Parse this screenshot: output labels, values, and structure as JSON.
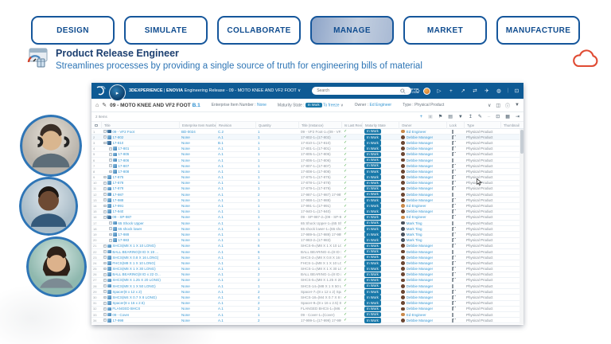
{
  "nav": {
    "tabs": [
      {
        "label": "DESIGN",
        "active": false
      },
      {
        "label": "SIMULATE",
        "active": false
      },
      {
        "label": "COLLABORATE",
        "active": false
      },
      {
        "label": "MANAGE",
        "active": true
      },
      {
        "label": "MARKET",
        "active": false
      },
      {
        "label": "MANUFACTURE",
        "active": false
      }
    ]
  },
  "hero": {
    "title": "Product Release Engineer",
    "subtitle": "Streamlines processes by providing a single source of truth for engineering bills of material"
  },
  "app": {
    "topbar": {
      "brand": "3DEXPERIENCE",
      "divider": "|",
      "product": "ENOVIA",
      "app_title": "Engineering Release - 09 - MOTO KNEE AND VF2 FOOT",
      "chevron": "∨",
      "search_placeholder": "Search",
      "user_name": "Ed Engineer",
      "user_org": "BioDept 2025"
    },
    "context": {
      "title": "09 - MOTO KNEE AND VF2 FOOT",
      "revision": "B.1",
      "ein_label": "Enterprise Item Number :",
      "ein_value": "None",
      "maturity_label": "Maturity State :",
      "maturity_value": "In Work",
      "maturity_next": "To freeze",
      "chevron": "∨",
      "owner_label": "Owner :",
      "owner_value": "Ed Engineer",
      "type_label": "Type :",
      "type_value": "Physical Product"
    },
    "toolbar": {
      "items_count": "2 Items"
    },
    "table": {
      "columns": [
        "Title",
        "Enterprise Item Number",
        "Revision",
        "Quantity",
        "Title (Instance)",
        "Is Last Revision",
        "Maturity State",
        "Owner",
        "Lock",
        "Type",
        "Thumbnail"
      ],
      "maturity_badge": "In Work",
      "type_value": "Physical Product",
      "rows": [
        {
          "n": 1,
          "indent": false,
          "kind": "assembly",
          "title": "09 - VF2 Foot",
          "ein": "BD-0024",
          "rev": "C.2",
          "qty": "1",
          "inst": "09 - VF2 Foot-1=(09 - VF2 ...",
          "owner": "Ed Engineer"
        },
        {
          "n": 2,
          "indent": false,
          "kind": "part",
          "title": "17-802",
          "ein": "None",
          "rev": "A.1",
          "qty": "1",
          "inst": "17-802-1=(17-802)",
          "owner": "Debbie Manager"
        },
        {
          "n": 3,
          "indent": false,
          "kind": "assembly",
          "title": "17-810",
          "ein": "None",
          "rev": "B.1",
          "qty": "1",
          "inst": "17-810-1=(17-810)",
          "owner": "Debbie Manager"
        },
        {
          "n": 4,
          "indent": true,
          "kind": "part",
          "title": "17-801",
          "ein": "None",
          "rev": "A.1",
          "qty": "1",
          "inst": "17-801-1=(17-801)",
          "owner": "Debbie Manager"
        },
        {
          "n": 5,
          "indent": true,
          "kind": "part",
          "title": "17-805",
          "ein": "None",
          "rev": "A.1",
          "qty": "1",
          "inst": "17-805-1=(17-805)",
          "owner": "Debbie Manager"
        },
        {
          "n": 6,
          "indent": true,
          "kind": "part",
          "title": "17-806",
          "ein": "None",
          "rev": "A.1",
          "qty": "1",
          "inst": "17-806-1=(17-806)",
          "owner": "Debbie Manager"
        },
        {
          "n": 7,
          "indent": true,
          "kind": "part",
          "title": "17-807",
          "ein": "None",
          "rev": "A.1",
          "qty": "1",
          "inst": "17-807-1=(17-807)",
          "owner": "Debbie Manager"
        },
        {
          "n": 8,
          "indent": true,
          "kind": "part",
          "title": "17-808",
          "ein": "None",
          "rev": "A.1",
          "qty": "1",
          "inst": "17-808-1=(17-808)",
          "owner": "Debbie Manager"
        },
        {
          "n": 9,
          "indent": false,
          "kind": "part",
          "title": "17-875",
          "ein": "None",
          "rev": "A.1",
          "qty": "1",
          "inst": "17-875-1=(17-875)",
          "owner": "Debbie Manager"
        },
        {
          "n": 10,
          "indent": false,
          "kind": "part",
          "title": "17-878",
          "ein": "None",
          "rev": "A.1",
          "qty": "1",
          "inst": "17-878-1=(17-878)",
          "owner": "Debbie Manager"
        },
        {
          "n": 11,
          "indent": false,
          "kind": "part",
          "title": "17-879",
          "ein": "None",
          "rev": "A.1",
          "qty": "1",
          "inst": "17-879-1=(17-879)",
          "owner": "Debbie Manager"
        },
        {
          "n": 12,
          "indent": false,
          "kind": "part",
          "title": "17-987",
          "ein": "None",
          "rev": "A.1",
          "qty": "2",
          "inst": "17-987-1=(17-987) 17-987...",
          "owner": "Debbie Manager"
        },
        {
          "n": 13,
          "indent": false,
          "kind": "part",
          "title": "17-988",
          "ein": "None",
          "rev": "A.1",
          "qty": "1",
          "inst": "17-988-1=(17-988)",
          "owner": "Debbie Manager"
        },
        {
          "n": 14,
          "indent": false,
          "kind": "part",
          "title": "17-991",
          "ein": "None",
          "rev": "A.1",
          "qty": "1",
          "inst": "17-991-1=(17-991)",
          "owner": "Ed Engineer"
        },
        {
          "n": 15,
          "indent": false,
          "kind": "part",
          "title": "17-940",
          "ein": "None",
          "rev": "A.1",
          "qty": "1",
          "inst": "17-940-1=(17-940)",
          "owner": "Debbie Manager"
        },
        {
          "n": 16,
          "indent": false,
          "kind": "assembly",
          "title": "09 - SP-987",
          "ein": "None",
          "rev": "A.1",
          "qty": "1",
          "inst": "09 - SP-987-2=(09 - SP-987)",
          "owner": "Ed Engineer"
        },
        {
          "n": 17,
          "indent": true,
          "kind": "part",
          "title": "65 Shock Upper",
          "ein": "None",
          "rev": "A.1",
          "qty": "1",
          "inst": "65 Shock Upper-1=(65 Sho...",
          "owner": "Mark Ting"
        },
        {
          "n": 18,
          "indent": true,
          "kind": "part",
          "title": "65 shock lower",
          "ein": "None",
          "rev": "A.1",
          "qty": "1",
          "inst": "65 shock lower-1=(65 shoc...",
          "owner": "Mark Ting"
        },
        {
          "n": 19,
          "indent": true,
          "kind": "part",
          "title": "17-989",
          "ein": "None",
          "rev": "A.1",
          "qty": "4",
          "inst": "17-989-5=(17-989) 17-989...",
          "owner": "Mark Ting"
        },
        {
          "n": 20,
          "indent": true,
          "kind": "part",
          "title": "17-983",
          "ein": "None",
          "rev": "A.1",
          "qty": "1",
          "inst": "17-983-2=(17-983)",
          "owner": "Mark Ting"
        },
        {
          "n": 21,
          "indent": false,
          "kind": "part",
          "title": "SHCS(M8 X 1 X 10 LONG)",
          "ein": "None",
          "rev": "A.1",
          "qty": "6",
          "inst": "SHCS-9=(M8 X 1 X 10 LO...",
          "owner": "Debbie Manager"
        },
        {
          "n": 22,
          "indent": false,
          "kind": "part",
          "title": "BALL BEARING(8 ID X 19 ...",
          "ein": "None",
          "rev": "A.1",
          "qty": "6",
          "inst": "BALL BEARING-4=(8 ID X ...",
          "owner": "Debbie Manager"
        },
        {
          "n": 23,
          "indent": false,
          "kind": "part",
          "title": "SHCS(M8 X 0.8 X 16 LONG)",
          "ein": "None",
          "rev": "A.1",
          "qty": "1",
          "inst": "SHCS-2=(M8 X 0.8 X 16 L...",
          "owner": "Debbie Manager"
        },
        {
          "n": 24,
          "indent": false,
          "kind": "part",
          "title": "FHCS(M8 X 1 X 10 LONG)",
          "ein": "None",
          "rev": "A.1",
          "qty": "4",
          "inst": "FHCS-1=(M8 X 1 X 10 LO...",
          "owner": "Debbie Manager"
        },
        {
          "n": 25,
          "indent": false,
          "kind": "part",
          "title": "SHCS(M8 X 1 X 30 LONG)",
          "ein": "None",
          "rev": "A.1",
          "qty": "1",
          "inst": "SHCS-1=(M8 X 1 X 30 LO...",
          "owner": "Debbie Manager"
        },
        {
          "n": 26,
          "indent": false,
          "kind": "part",
          "title": "BALL BEARING(8 ID x 22 O...",
          "ein": "None",
          "rev": "A.1",
          "qty": "2",
          "inst": "BALL BEARING-1=(8 ID x ...",
          "owner": "Debbie Manager"
        },
        {
          "n": 27,
          "indent": false,
          "kind": "part",
          "title": "SHCS(M8 X 1.25 X 20 LONG)",
          "ein": "None",
          "rev": "A.1",
          "qty": "2",
          "inst": "SHCS-5=(M8 X 1.25 X 20 ...",
          "owner": "Debbie Manager"
        },
        {
          "n": 28,
          "indent": false,
          "kind": "part",
          "title": "SHCS(M8 X 1 X 50 LONG)",
          "ein": "None",
          "rev": "A.1",
          "qty": "1",
          "inst": "SHCS-14=(M8 X 1 X 50 L...",
          "owner": "Debbie Manager"
        },
        {
          "n": 29,
          "indent": false,
          "kind": "part",
          "title": "Spacer(8 x 12 x 2)",
          "ein": "None",
          "rev": "A.1",
          "qty": "2",
          "inst": "Spacer-7=(8 x 12 x 2) Spac...",
          "owner": "Debbie Manager"
        },
        {
          "n": 30,
          "indent": false,
          "kind": "part",
          "title": "SHCS(M4 X 0.7 X 8 LONG)",
          "ein": "None",
          "rev": "A.1",
          "qty": "4",
          "inst": "SHCS-18=(M4 X 0.7 X 8 L...",
          "owner": "Debbie Manager"
        },
        {
          "n": 31,
          "indent": false,
          "kind": "part",
          "title": "Spacer(8 x 16 x 2.5)",
          "ein": "None",
          "rev": "A.1",
          "qty": "2",
          "inst": "Spacer-9=(8 x 16 x 2.5) Sp...",
          "owner": "Debbie Manager"
        },
        {
          "n": 32,
          "indent": false,
          "kind": "part",
          "title": "FLANGED BHCS",
          "ein": "None",
          "rev": "A.1",
          "qty": "2",
          "inst": "FLANGED BHCS-1=(M6 X ...",
          "owner": "Debbie Manager"
        },
        {
          "n": 33,
          "indent": false,
          "kind": "part",
          "title": "09 - Cover",
          "ein": "None",
          "rev": "A.1",
          "qty": "1",
          "inst": "09 - Cover-1=(Cover)",
          "owner": "Ed Engineer"
        },
        {
          "n": 34,
          "indent": false,
          "kind": "part",
          "title": "17-999",
          "ein": "None",
          "rev": "A.1",
          "qty": "2",
          "inst": "17-999-1=(17-999) 17-999...",
          "owner": "Debbie Manager"
        }
      ]
    }
  },
  "icons": {
    "check": "✓",
    "chevron": "∨",
    "home": "⌂",
    "pencil": "✎",
    "play": "▷",
    "add": "+",
    "share": "↗",
    "sync": "⇄",
    "send": "✈",
    "globe": "◍",
    "fullscreen": "⊡",
    "pipe": "|",
    "tag": "◇",
    "info": "ⓘ",
    "filter": "▼",
    "chart": "◫",
    "copy": "▣",
    "flag": "⚑",
    "print": "▤",
    "export": "↥",
    "edit": "✎",
    "expand": "⊡",
    "grid": "▦",
    "exit": "⇥",
    "expander": "+"
  },
  "colors": {
    "nav_border": "#15569b",
    "nav_text": "#0f4c8f",
    "hero_title": "#1c3f70",
    "hero_subtitle": "#2e75b5",
    "topbar_bg": "#0e5a94",
    "link_blue": "#3596d2",
    "badge_bg": "#1878a9",
    "check_green": "#3da43d",
    "cloud_red": "#e04b33",
    "avatars": {
      "Ed Engineer": "#c98a4b",
      "Debbie Manager": "#6b4632",
      "Mark Ting": "#47505c"
    }
  }
}
